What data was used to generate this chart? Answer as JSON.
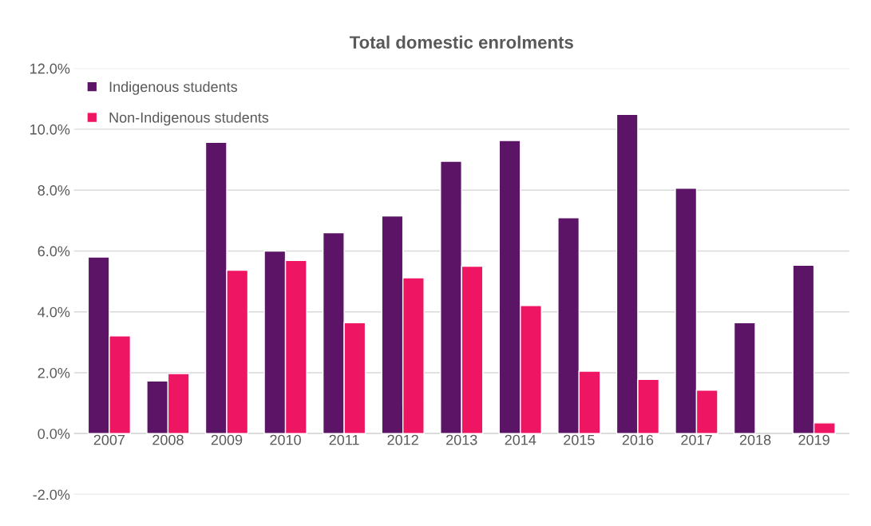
{
  "chart_data": {
    "type": "bar",
    "title": "Total domestic enrolments",
    "categories": [
      "2007",
      "2008",
      "2009",
      "2010",
      "2011",
      "2012",
      "2013",
      "2014",
      "2015",
      "2016",
      "2017",
      "2018",
      "2019"
    ],
    "series": [
      {
        "name": "Indigenous students",
        "color": "#5c1566",
        "values": [
          5.8,
          1.73,
          9.57,
          6.0,
          6.6,
          7.15,
          8.95,
          9.63,
          7.09,
          10.49,
          8.06,
          3.64,
          5.53
        ]
      },
      {
        "name": "Non-Indigenous students",
        "color": "#ee1563",
        "values": [
          3.21,
          1.97,
          5.37,
          5.69,
          3.64,
          5.12,
          5.5,
          4.21,
          2.05,
          1.78,
          1.43,
          null,
          0.35
        ]
      }
    ],
    "ylim": [
      -2,
      12
    ],
    "yticks": [
      {
        "value": -2,
        "label": "-2.0%"
      },
      {
        "value": 0,
        "label": "0.0%"
      },
      {
        "value": 2,
        "label": "2.0%"
      },
      {
        "value": 4,
        "label": "4.0%"
      },
      {
        "value": 6,
        "label": "6.0%"
      },
      {
        "value": 8,
        "label": "8.0%"
      },
      {
        "value": 10,
        "label": "10.0%"
      },
      {
        "value": 12,
        "label": "12.0%"
      }
    ],
    "grid": "y",
    "legend": "top left"
  }
}
